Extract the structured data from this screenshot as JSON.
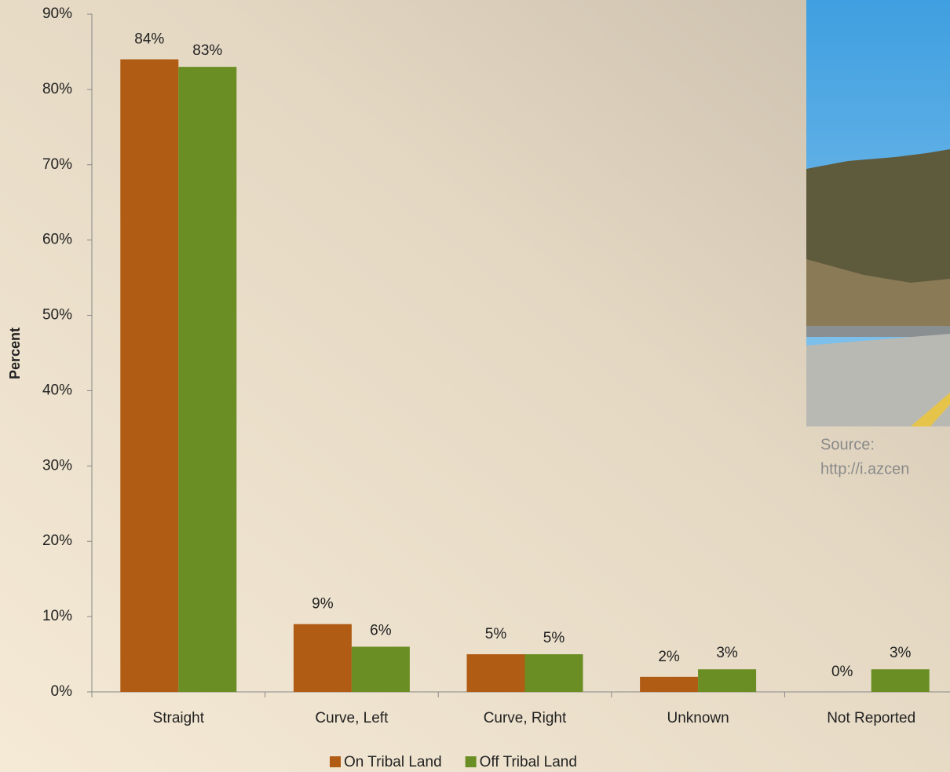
{
  "chart_data": {
    "type": "bar",
    "y_label": "Percent",
    "categories": [
      "Straight",
      "Curve, Left",
      "Curve, Right",
      "Unknown",
      "Not Reported"
    ],
    "series": [
      {
        "name": "On Tribal Land",
        "color": "#b05c14",
        "values": [
          84,
          9,
          5,
          2,
          0
        ],
        "value_labels": [
          "84%",
          "9%",
          "5%",
          "2%",
          "0%"
        ]
      },
      {
        "name": "Off Tribal Land",
        "color": "#6a8e23",
        "values": [
          83,
          6,
          5,
          3,
          3
        ],
        "value_labels": [
          "83%",
          "6%",
          "5%",
          "3%",
          "3%"
        ]
      }
    ],
    "ylim": [
      0,
      90
    ],
    "yticks": [
      {
        "value": 0,
        "label": "0%"
      },
      {
        "value": 10,
        "label": "10%"
      },
      {
        "value": 20,
        "label": "20%"
      },
      {
        "value": 30,
        "label": "30%"
      },
      {
        "value": 40,
        "label": "40%"
      },
      {
        "value": 50,
        "label": "50%"
      },
      {
        "value": 60,
        "label": "60%"
      },
      {
        "value": 70,
        "label": "70%"
      },
      {
        "value": 80,
        "label": "80%"
      },
      {
        "value": 90,
        "label": "90%"
      }
    ],
    "legend": "bottom",
    "annotations": [
      "Source:",
      "http://i.azcen"
    ]
  }
}
